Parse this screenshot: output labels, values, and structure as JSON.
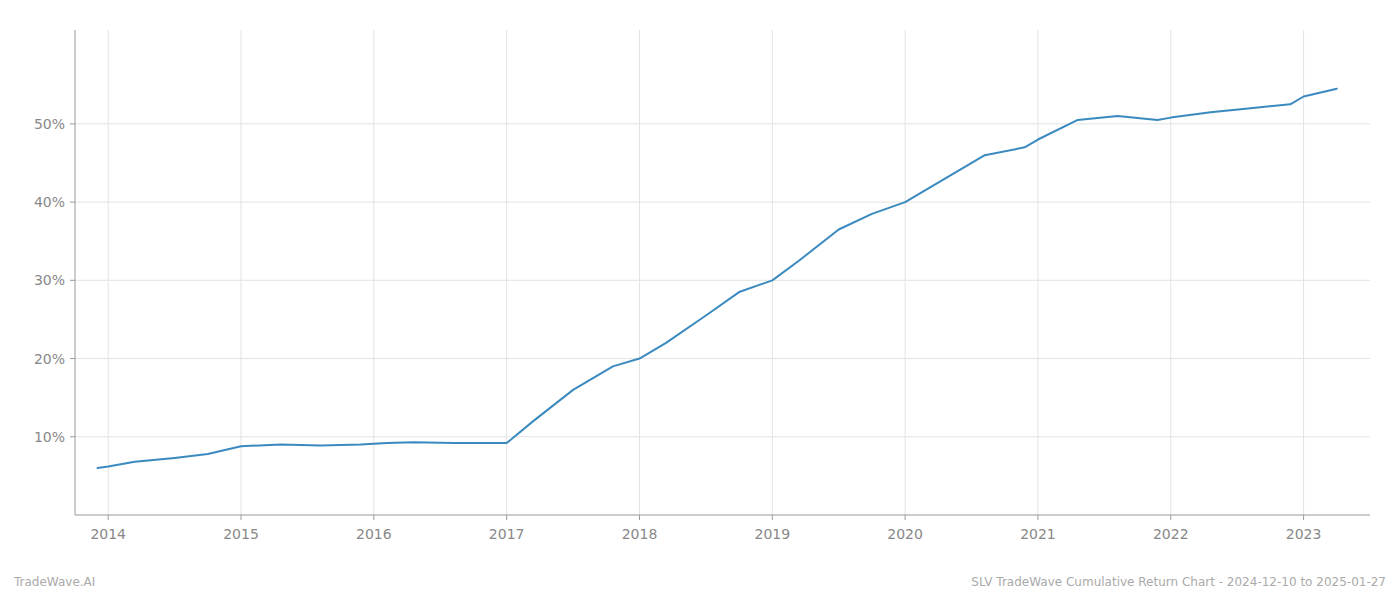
{
  "chart_data": {
    "type": "line",
    "x": [
      2013.92,
      2014.0,
      2014.2,
      2014.5,
      2014.75,
      2015.0,
      2015.3,
      2015.6,
      2015.9,
      2016.0,
      2016.1,
      2016.3,
      2016.6,
      2016.9,
      2017.0,
      2017.2,
      2017.5,
      2017.8,
      2018.0,
      2018.2,
      2018.5,
      2018.75,
      2019.0,
      2019.2,
      2019.5,
      2019.75,
      2020.0,
      2020.3,
      2020.6,
      2020.9,
      2021.0,
      2021.3,
      2021.6,
      2021.9,
      2022.0,
      2022.3,
      2022.6,
      2022.9,
      2023.0,
      2023.25
    ],
    "values": [
      6.0,
      6.2,
      6.8,
      7.3,
      7.8,
      8.8,
      9.0,
      8.9,
      9.0,
      9.1,
      9.2,
      9.3,
      9.2,
      9.2,
      9.2,
      12.0,
      16.0,
      19.0,
      20.0,
      22.0,
      25.5,
      28.5,
      30.0,
      32.5,
      36.5,
      38.5,
      40.0,
      43.0,
      46.0,
      47.0,
      48.0,
      50.5,
      51.0,
      50.5,
      50.8,
      51.5,
      52.0,
      52.5,
      53.5,
      54.5
    ],
    "color": "#3a8abf",
    "xlim": [
      2013.75,
      2023.5
    ],
    "xticks": [
      2014,
      2015,
      2016,
      2017,
      2018,
      2019,
      2020,
      2021,
      2022,
      2023
    ],
    "ylim": [
      0,
      62
    ],
    "yticks": [
      {
        "value": 10,
        "label": "10%"
      },
      {
        "value": 20,
        "label": "20%"
      },
      {
        "value": 30,
        "label": "30%"
      },
      {
        "value": 40,
        "label": "40%"
      },
      {
        "value": 50,
        "label": "50%"
      }
    ],
    "grid": true,
    "annotations": [
      "TradeWave.AI",
      "SLV TradeWave Cumulative Return Chart - 2024-12-10 to 2025-01-27"
    ]
  }
}
